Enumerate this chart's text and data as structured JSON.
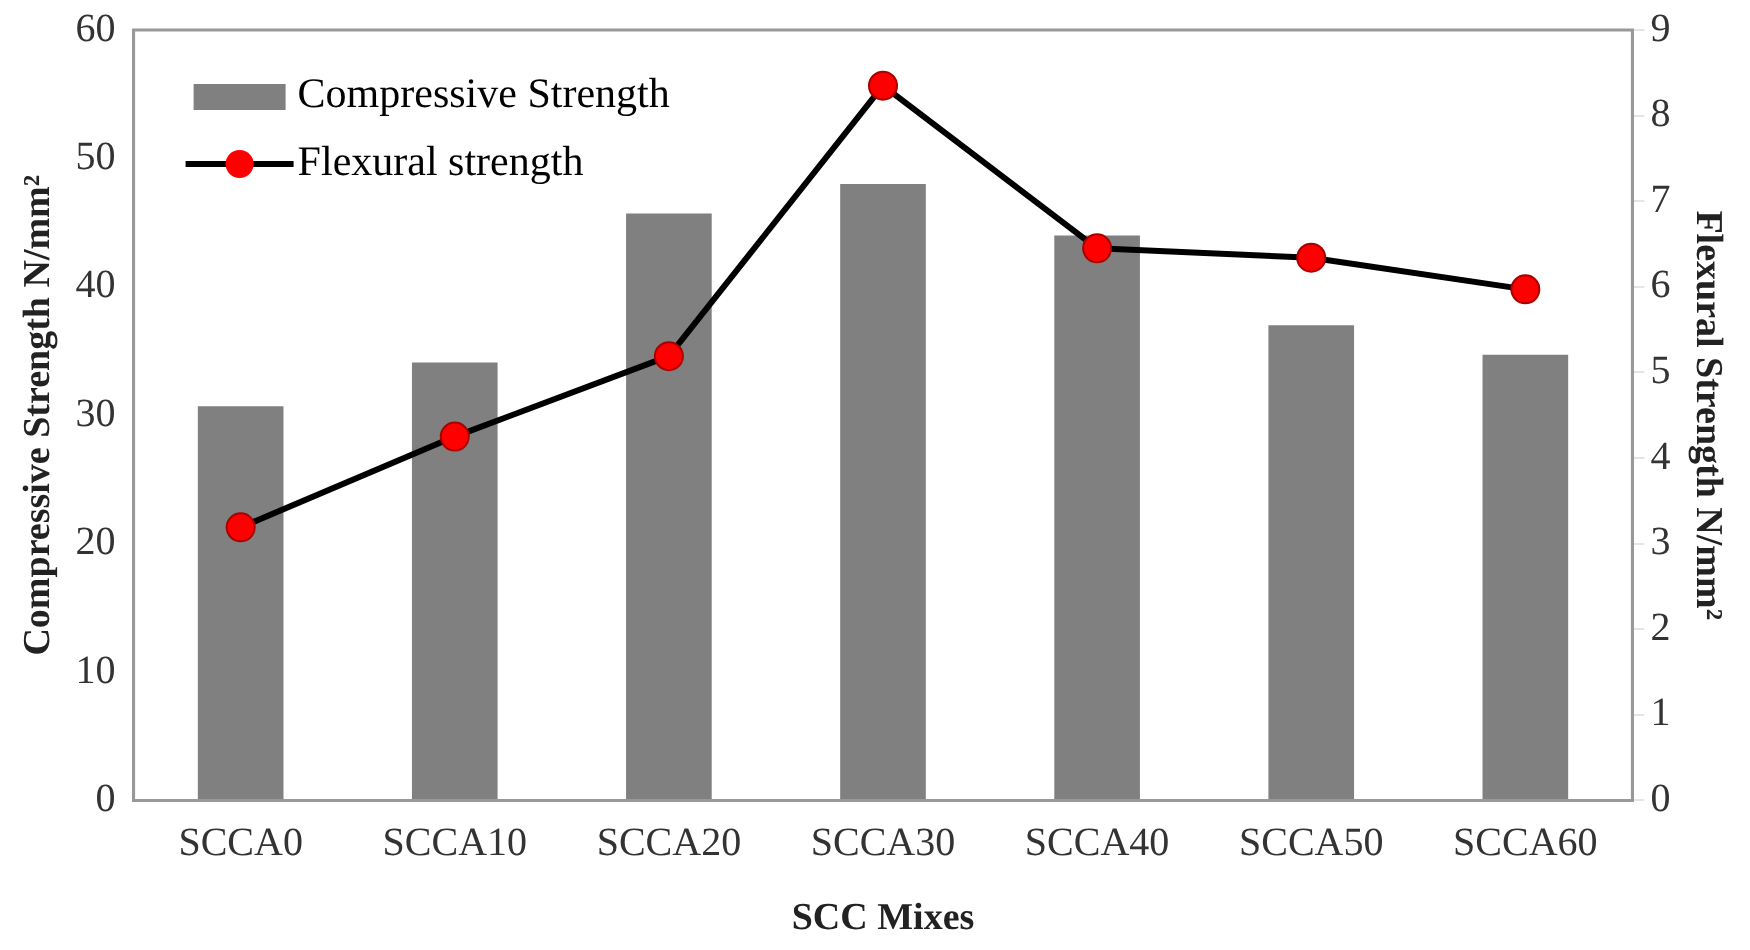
{
  "chart_data": {
    "type": "bar",
    "xlabel": "SCC Mixes",
    "ylabel": "Compressive Strength N/mm²",
    "y2label": "Flexural Strength N/mm²",
    "categories": [
      "SCCA0",
      "SCCA10",
      "SCCA20",
      "SCCA30",
      "SCCA40",
      "SCCA50",
      "SCCA60"
    ],
    "series": [
      {
        "name": "Compressive Strength",
        "color": "#808080",
        "values": [
          30.7,
          34.1,
          45.7,
          48.0,
          44.0,
          37.0,
          34.7
        ]
      },
      {
        "name": "Flexural strength",
        "type": "line",
        "axis": "y2",
        "color": "#000000",
        "marker": "circle",
        "values": [
          3.19,
          4.25,
          5.19,
          8.35,
          6.45,
          6.34,
          5.97
        ]
      }
    ],
    "ylim": [
      0,
      60
    ],
    "yticks": [
      0,
      10,
      20,
      30,
      40,
      50,
      60
    ],
    "y2lim": [
      0,
      9
    ],
    "y2ticks": [
      0,
      1,
      2,
      3,
      4,
      5,
      6,
      7,
      8,
      9
    ],
    "grid": false,
    "legend": "top left"
  }
}
